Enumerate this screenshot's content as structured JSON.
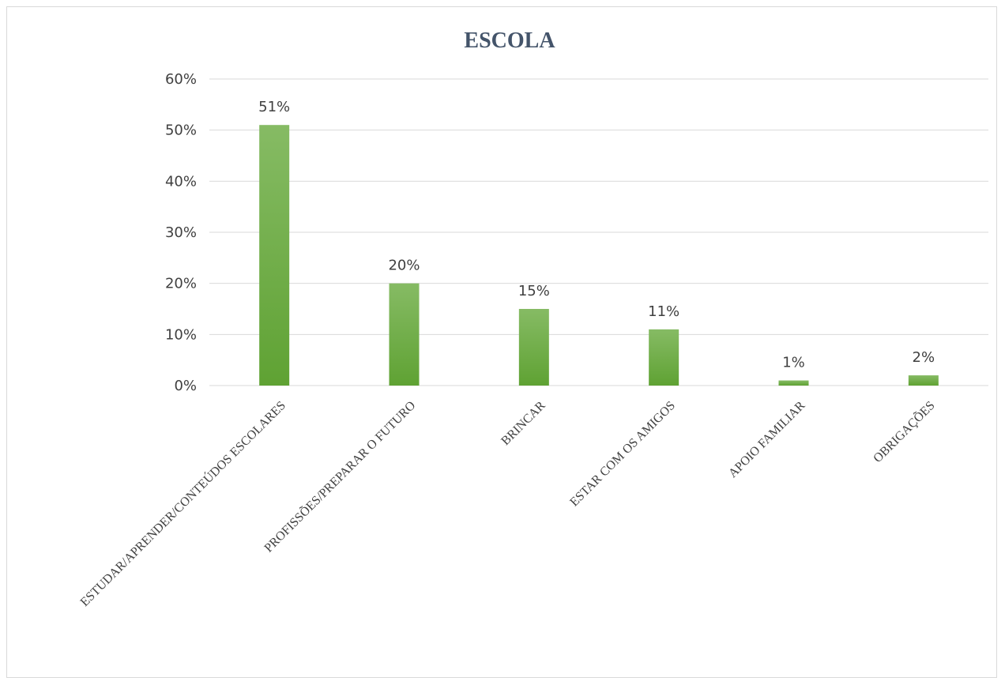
{
  "chart_data": {
    "type": "bar",
    "title": "ESCOLA",
    "xlabel": "",
    "ylabel": "",
    "categories": [
      "ESTUDAR/APRENDER/CONTEÚDOS ESCOLARES",
      "PROFISSÕES/PREPARAR O FUTURO",
      "BRINCAR",
      "ESTAR COM OS AMIGOS",
      "APOIO FAMILIAR",
      "OBRIGAÇÕES"
    ],
    "values": [
      51,
      20,
      15,
      11,
      1,
      2
    ],
    "value_labels": [
      "51%",
      "20%",
      "15%",
      "11%",
      "1%",
      "2%"
    ],
    "ylim": [
      0,
      60
    ],
    "yticks": [
      0,
      10,
      20,
      30,
      40,
      50,
      60
    ],
    "ytick_labels": [
      "0%",
      "10%",
      "20%",
      "30%",
      "40%",
      "50%",
      "60%"
    ],
    "grid": true,
    "legend": "none",
    "colors": {
      "bar_top": "#86bb64",
      "bar_bottom": "#5fa233",
      "grid": "#d9d9d9",
      "title": "#44546a",
      "text": "#404040"
    }
  }
}
